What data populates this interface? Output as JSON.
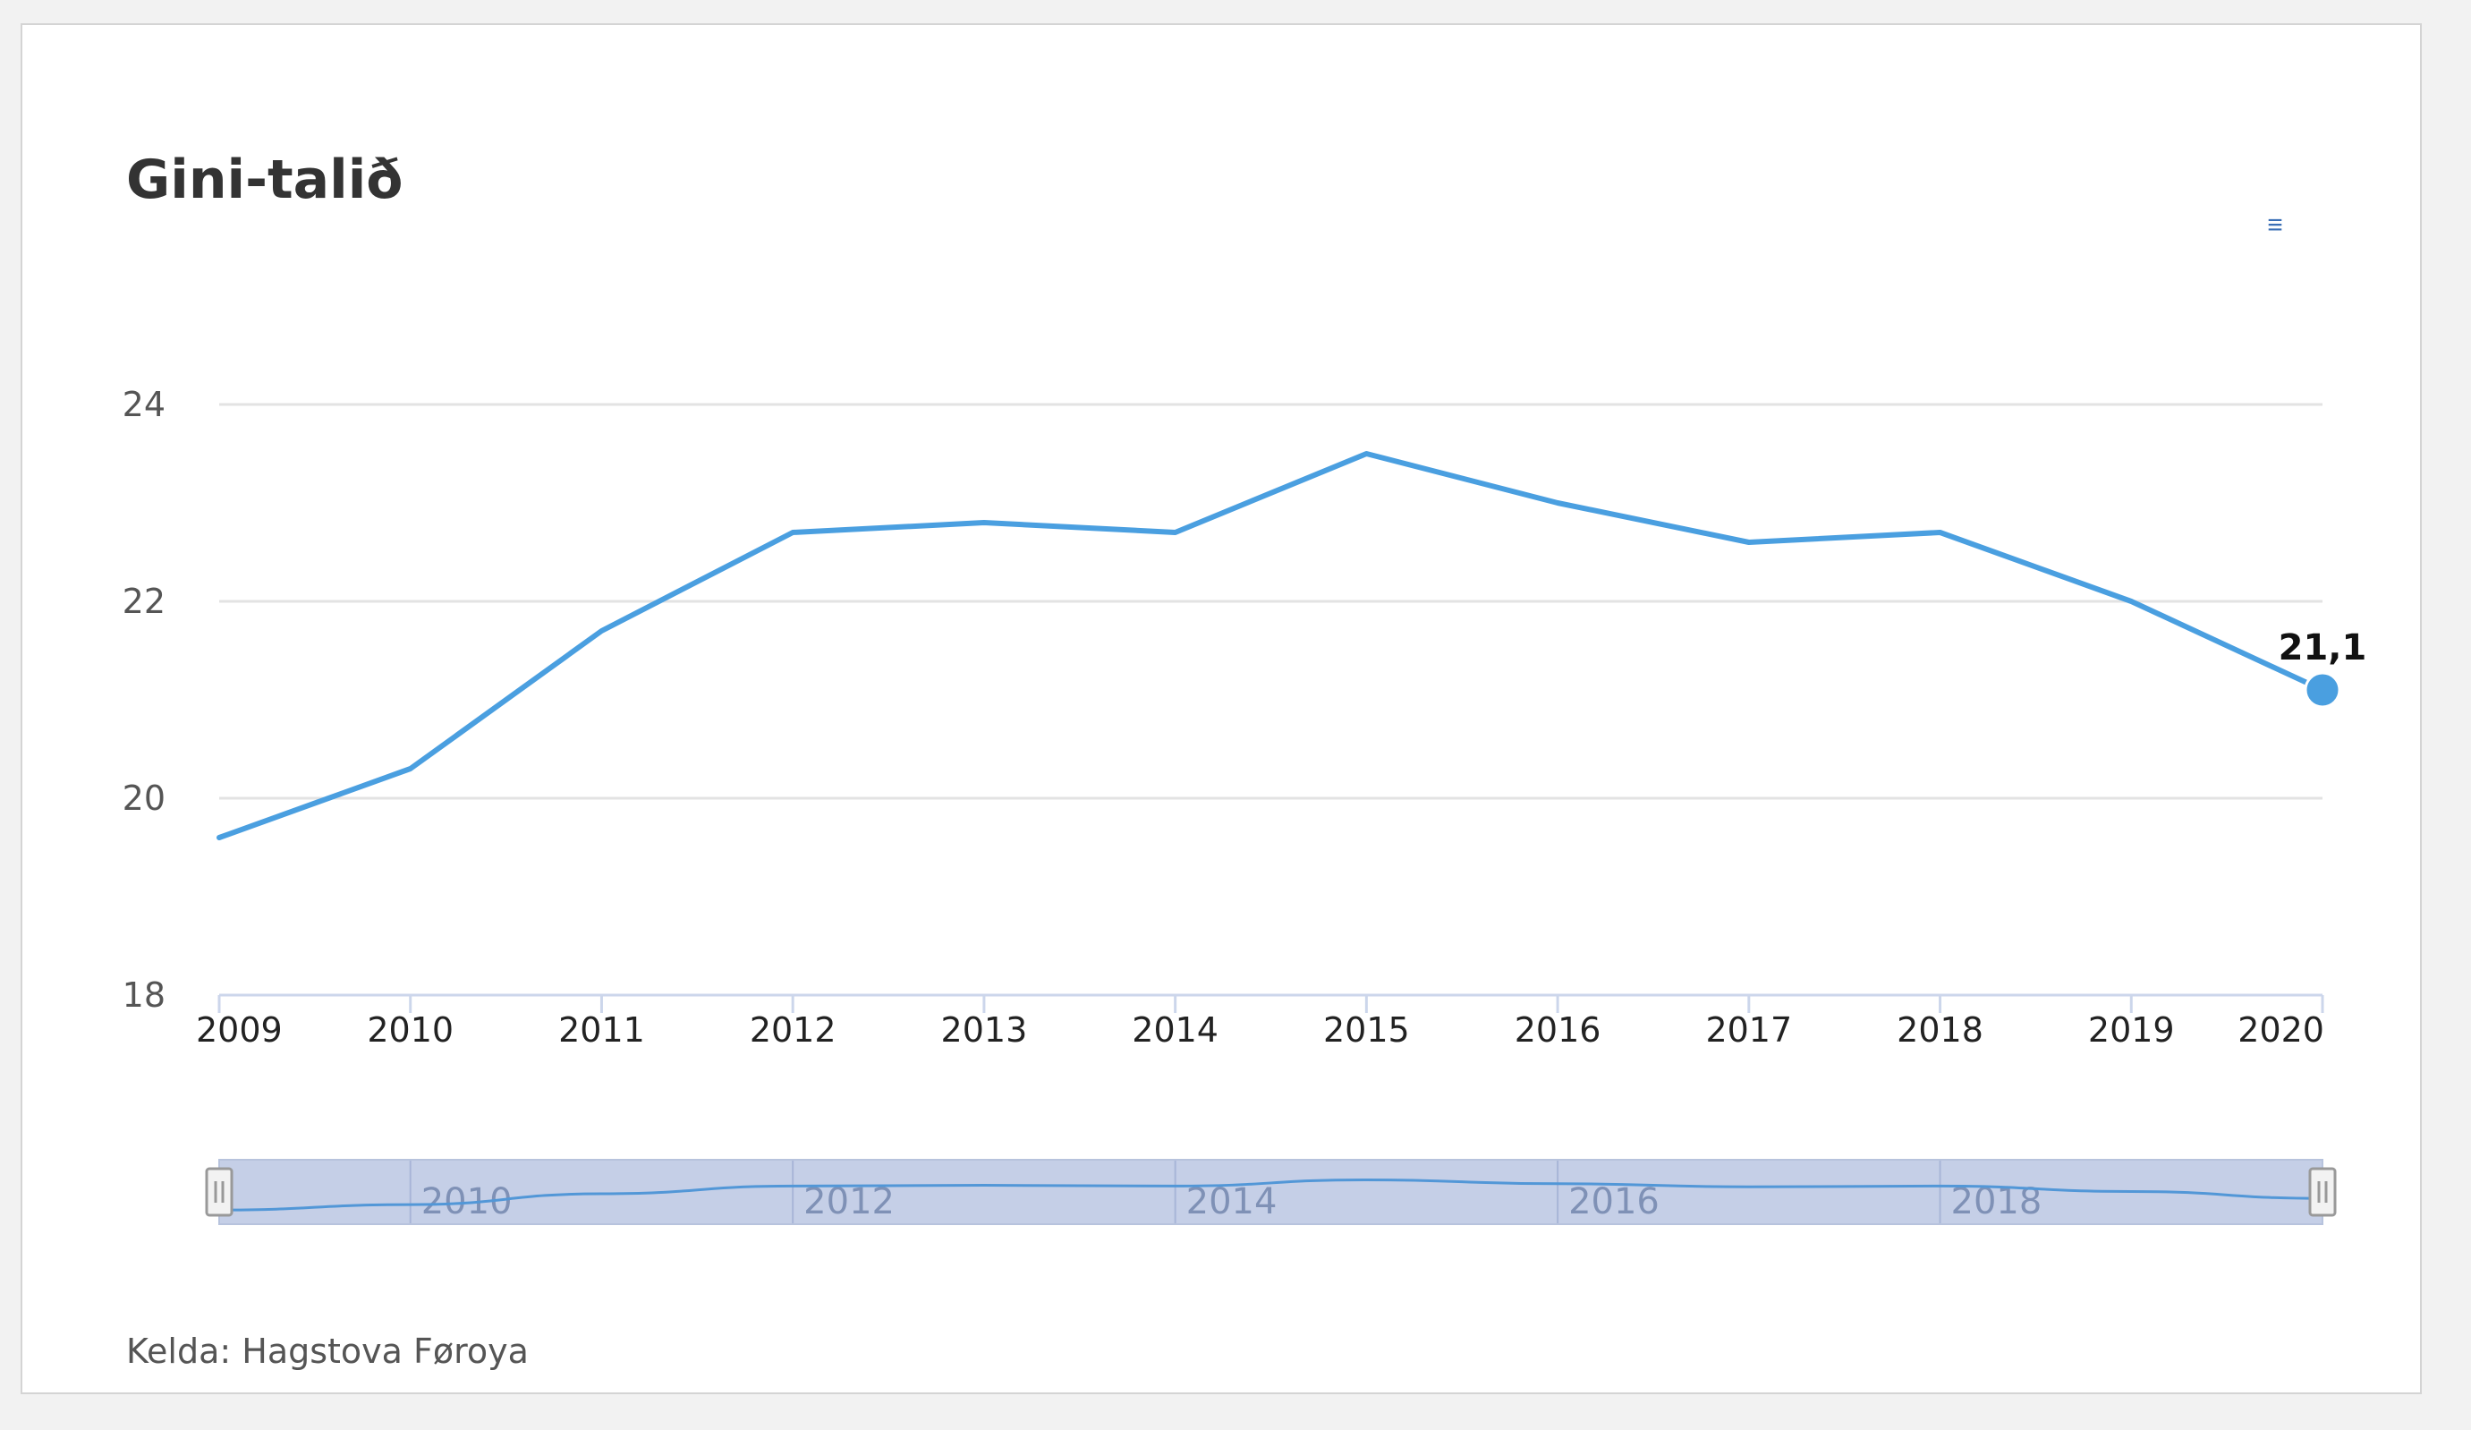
{
  "chart_data": {
    "type": "line",
    "title": "Gini-talið",
    "credits": "Kelda: Hagstova Føroya",
    "x": [
      2009,
      2010,
      2011,
      2012,
      2013,
      2014,
      2015,
      2016,
      2017,
      2018,
      2019,
      2020
    ],
    "series": [
      {
        "values": [
          19.6,
          20.3,
          21.7,
          22.7,
          22.8,
          22.7,
          23.5,
          23.0,
          22.6,
          22.7,
          22.0,
          21.1
        ],
        "color": "#4a9fe0"
      }
    ],
    "data_label": {
      "index": 11,
      "text": "21,1"
    },
    "ylim": [
      18,
      24
    ],
    "yticks": [
      18,
      20,
      22,
      24
    ],
    "xticks": [
      "2009",
      "2010",
      "2011",
      "2012",
      "2013",
      "2014",
      "2015",
      "2016",
      "2017",
      "2018",
      "2019",
      "2020"
    ],
    "grid": true,
    "legend": "none",
    "navigator": {
      "ticks": [
        "2010",
        "2012",
        "2014",
        "2016",
        "2018"
      ],
      "range": [
        2009,
        2020
      ]
    }
  },
  "menu": {
    "icon": "hamburger-menu-icon",
    "glyph": "≡"
  }
}
